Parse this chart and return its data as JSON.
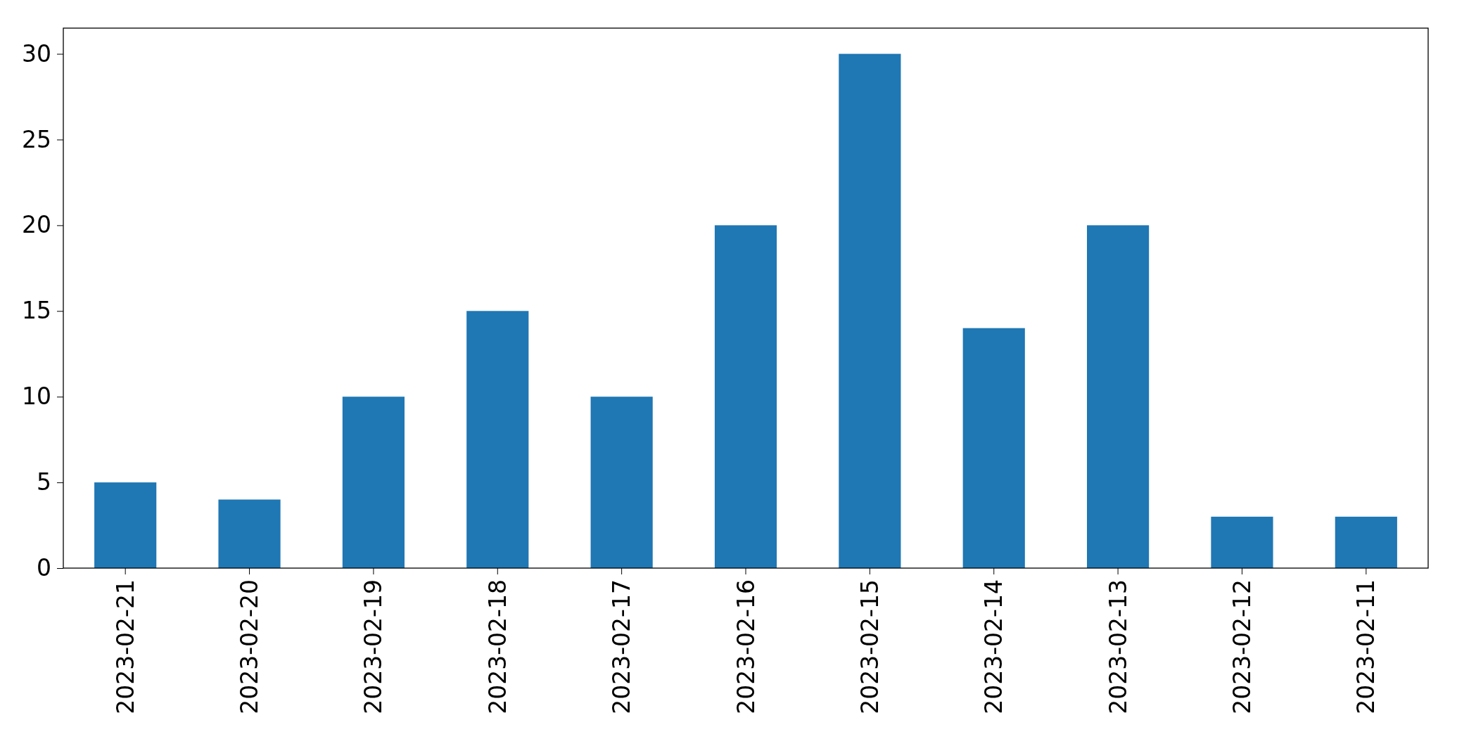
{
  "chart_data": {
    "type": "bar",
    "categories": [
      "2023-02-21",
      "2023-02-20",
      "2023-02-19",
      "2023-02-18",
      "2023-02-17",
      "2023-02-16",
      "2023-02-15",
      "2023-02-14",
      "2023-02-13",
      "2023-02-12",
      "2023-02-11"
    ],
    "values": [
      5,
      4,
      10,
      15,
      10,
      20,
      30,
      14,
      20,
      3,
      3
    ],
    "color": "#1f77b4",
    "ylim": [
      0,
      31.5
    ],
    "yticks": [
      0,
      5,
      10,
      15,
      20,
      25,
      30
    ]
  }
}
